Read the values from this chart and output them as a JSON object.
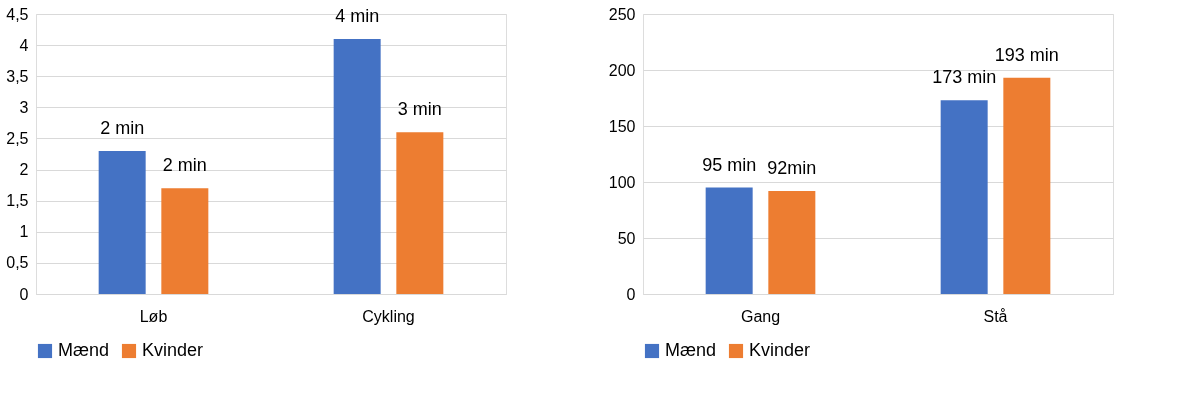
{
  "chart_data": [
    {
      "type": "bar",
      "categories": [
        "Løb",
        "Cykling"
      ],
      "series": [
        {
          "name": "Mænd",
          "color": "#4472c4",
          "values": [
            2.3,
            4.1
          ],
          "value_labels": [
            "2 min",
            "4 min"
          ]
        },
        {
          "name": "Kvinder",
          "color": "#ed7d31",
          "values": [
            1.7,
            2.6
          ],
          "value_labels": [
            "2 min",
            "3 min"
          ]
        }
      ],
      "ylim": [
        0,
        4.5
      ],
      "yticks": [
        0,
        {
          "value": 0.5,
          "label": "0,5"
        },
        1,
        {
          "value": 1.5,
          "label": "1,5"
        },
        2,
        {
          "value": 2.5,
          "label": "2,5"
        },
        3,
        {
          "value": 3.5,
          "label": "3,5"
        },
        4,
        {
          "value": 4.5,
          "label": "4,5"
        }
      ],
      "grid": "y",
      "legend": "bottom"
    },
    {
      "type": "bar",
      "categories": [
        "Gang",
        "Stå"
      ],
      "series": [
        {
          "name": "Mænd",
          "color": "#4472c4",
          "values": [
            95,
            173
          ],
          "value_labels": [
            "95 min",
            "173 min"
          ]
        },
        {
          "name": "Kvinder",
          "color": "#ed7d31",
          "values": [
            92,
            193
          ],
          "value_labels": [
            "92min",
            "193 min"
          ]
        }
      ],
      "ylim": [
        0,
        250
      ],
      "yticks": [
        0,
        50,
        100,
        150,
        200,
        250
      ],
      "grid": "y",
      "legend": "bottom"
    }
  ]
}
